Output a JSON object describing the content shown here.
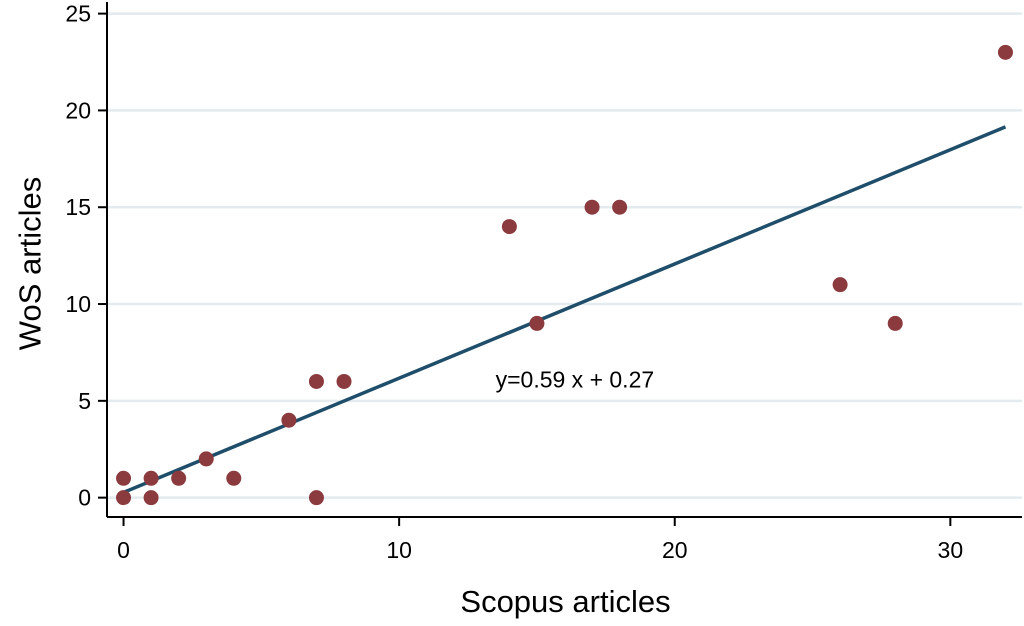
{
  "chart_data": {
    "type": "scatter",
    "title": "",
    "xlabel": "Scopus articles",
    "ylabel": "WoS articles",
    "xlim": [
      -0.6,
      32.6
    ],
    "ylim": [
      -1,
      25.6
    ],
    "xticks": [
      0,
      10,
      20,
      30
    ],
    "xtick_labels": [
      "0",
      "10",
      "20",
      "30"
    ],
    "yticks": [
      0,
      5,
      10,
      15,
      20,
      25
    ],
    "ytick_labels": [
      "0",
      "5",
      "10",
      "15",
      "20",
      "25"
    ],
    "grid": "horizontal",
    "legend": "none",
    "colors": {
      "point": "#8b3a3e",
      "fit_line": "#1f4e6b",
      "grid": "#e3ebef",
      "axis": "#000000"
    },
    "series": [
      {
        "type": "scatter",
        "points": [
          {
            "x": 0,
            "y": 1
          },
          {
            "x": 0,
            "y": 0
          },
          {
            "x": 1,
            "y": 1
          },
          {
            "x": 1,
            "y": 0
          },
          {
            "x": 2,
            "y": 1
          },
          {
            "x": 3,
            "y": 2
          },
          {
            "x": 4,
            "y": 1
          },
          {
            "x": 6,
            "y": 4
          },
          {
            "x": 7,
            "y": 6
          },
          {
            "x": 7,
            "y": 0
          },
          {
            "x": 8,
            "y": 6
          },
          {
            "x": 14,
            "y": 14
          },
          {
            "x": 15,
            "y": 9
          },
          {
            "x": 17,
            "y": 15
          },
          {
            "x": 18,
            "y": 15
          },
          {
            "x": 26,
            "y": 11
          },
          {
            "x": 28,
            "y": 9
          },
          {
            "x": 32,
            "y": 23
          }
        ]
      },
      {
        "type": "line",
        "slope": 0.59,
        "intercept": 0.27,
        "x_range": [
          0,
          32
        ]
      }
    ],
    "annotations": [
      {
        "text": "y=0.59 x + 0.27",
        "x": 13.5,
        "y": 6.1
      }
    ]
  }
}
